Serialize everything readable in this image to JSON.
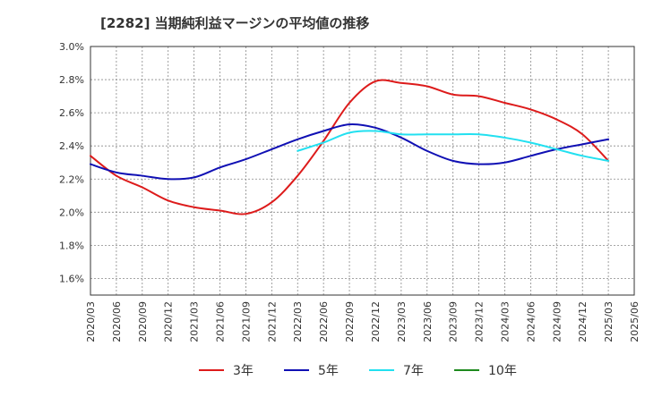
{
  "chart_data": {
    "type": "line",
    "title": "[2282]  当期純利益マージンの平均値の推移",
    "xlabel": "",
    "ylabel": "",
    "x_ticks": [
      "2020/03",
      "2020/06",
      "2020/09",
      "2020/12",
      "2021/03",
      "2021/06",
      "2021/09",
      "2021/12",
      "2022/03",
      "2022/06",
      "2022/09",
      "2022/12",
      "2023/03",
      "2023/06",
      "2023/09",
      "2023/12",
      "2024/03",
      "2024/06",
      "2024/09",
      "2024/12",
      "2025/03",
      "2025/06"
    ],
    "y_ticks": [
      "1.6%",
      "1.8%",
      "2.0%",
      "2.2%",
      "2.4%",
      "2.6%",
      "2.8%",
      "3.0%"
    ],
    "ylim": [
      1.5,
      3.0
    ],
    "grid": true,
    "legend_position": "bottom",
    "series": [
      {
        "name": "3年",
        "color": "#dd1b1b",
        "x": [
          "2020/03",
          "2020/06",
          "2020/09",
          "2020/12",
          "2021/03",
          "2021/06",
          "2021/09",
          "2021/12",
          "2022/03",
          "2022/06",
          "2022/09",
          "2022/12",
          "2023/03",
          "2023/06",
          "2023/09",
          "2023/12",
          "2024/03",
          "2024/06",
          "2024/09",
          "2024/12",
          "2025/03"
        ],
        "values": [
          2.34,
          2.22,
          2.15,
          2.07,
          2.03,
          2.01,
          1.99,
          2.06,
          2.22,
          2.43,
          2.66,
          2.79,
          2.78,
          2.76,
          2.71,
          2.7,
          2.66,
          2.62,
          2.56,
          2.47,
          2.31
        ]
      },
      {
        "name": "5年",
        "color": "#1010b4",
        "x": [
          "2020/03",
          "2020/06",
          "2020/09",
          "2020/12",
          "2021/03",
          "2021/06",
          "2021/09",
          "2021/12",
          "2022/03",
          "2022/06",
          "2022/09",
          "2022/12",
          "2023/03",
          "2023/06",
          "2023/09",
          "2023/12",
          "2024/03",
          "2024/06",
          "2024/09",
          "2024/12",
          "2025/03"
        ],
        "values": [
          2.29,
          2.24,
          2.22,
          2.2,
          2.21,
          2.27,
          2.32,
          2.38,
          2.44,
          2.49,
          2.53,
          2.51,
          2.45,
          2.37,
          2.31,
          2.29,
          2.3,
          2.34,
          2.38,
          2.41,
          2.44
        ]
      },
      {
        "name": "7年",
        "color": "#22e0f0",
        "x": [
          "2022/03",
          "2022/06",
          "2022/09",
          "2022/12",
          "2023/03",
          "2023/06",
          "2023/09",
          "2023/12",
          "2024/03",
          "2024/06",
          "2024/09",
          "2024/12",
          "2025/03"
        ],
        "values": [
          2.37,
          2.42,
          2.48,
          2.49,
          2.47,
          2.47,
          2.47,
          2.47,
          2.45,
          2.42,
          2.38,
          2.34,
          2.31
        ]
      },
      {
        "name": "10年",
        "color": "#1e8a1e",
        "x": [],
        "values": []
      }
    ]
  }
}
